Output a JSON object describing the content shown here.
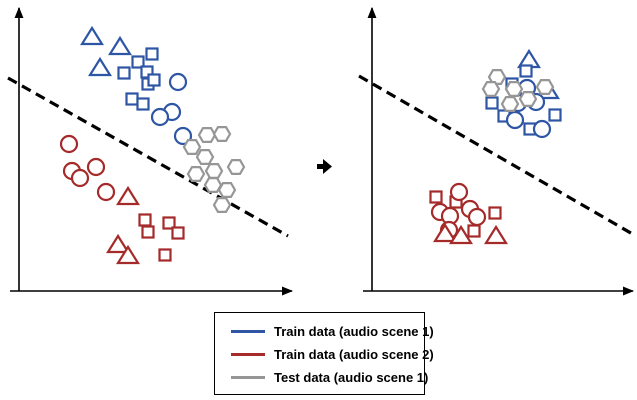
{
  "colors": {
    "scene1": "#2e56a4",
    "scene2": "#a52a2a",
    "test": "#969696",
    "boundary": "#000000",
    "axis": "#000000"
  },
  "arrow_icon": "right-arrow-icon",
  "legend": {
    "items": [
      {
        "label": "Train data (audio scene 1)",
        "color": "#2e56a4"
      },
      {
        "label": "Train data (audio scene 2)",
        "color": "#a52a2a"
      },
      {
        "label": "Test data (audio scene 1)",
        "color": "#969696"
      }
    ]
  },
  "panels": [
    {
      "name": "before-adaptation",
      "groups": [
        {
          "class": "scene1",
          "shapes": [
            "triangle",
            "triangle",
            "triangle",
            "square",
            "square",
            "square",
            "square",
            "square",
            "square",
            "square",
            "square",
            "circle",
            "circle",
            "circle",
            "circle"
          ]
        },
        {
          "class": "scene2",
          "shapes": [
            "circle",
            "circle",
            "circle",
            "circle",
            "circle",
            "triangle",
            "triangle",
            "triangle",
            "square",
            "square",
            "square",
            "square",
            "square"
          ]
        },
        {
          "class": "test",
          "shapes": [
            "hexagon",
            "hexagon",
            "hexagon",
            "hexagon",
            "hexagon",
            "hexagon",
            "hexagon",
            "hexagon",
            "hexagon",
            "hexagon"
          ]
        }
      ]
    },
    {
      "name": "after-adaptation",
      "groups": [
        {
          "class": "scene1",
          "shapes": [
            "triangle",
            "triangle",
            "square",
            "square",
            "square",
            "square",
            "square",
            "square",
            "circle",
            "circle",
            "circle",
            "circle",
            "circle"
          ]
        },
        {
          "class": "test",
          "shapes": [
            "hexagon",
            "hexagon",
            "hexagon",
            "hexagon",
            "hexagon",
            "hexagon"
          ]
        },
        {
          "class": "scene2",
          "shapes": [
            "square",
            "square",
            "circle",
            "circle",
            "circle",
            "circle",
            "circle",
            "circle",
            "triangle",
            "triangle",
            "triangle",
            "square",
            "square"
          ]
        }
      ]
    }
  ]
}
